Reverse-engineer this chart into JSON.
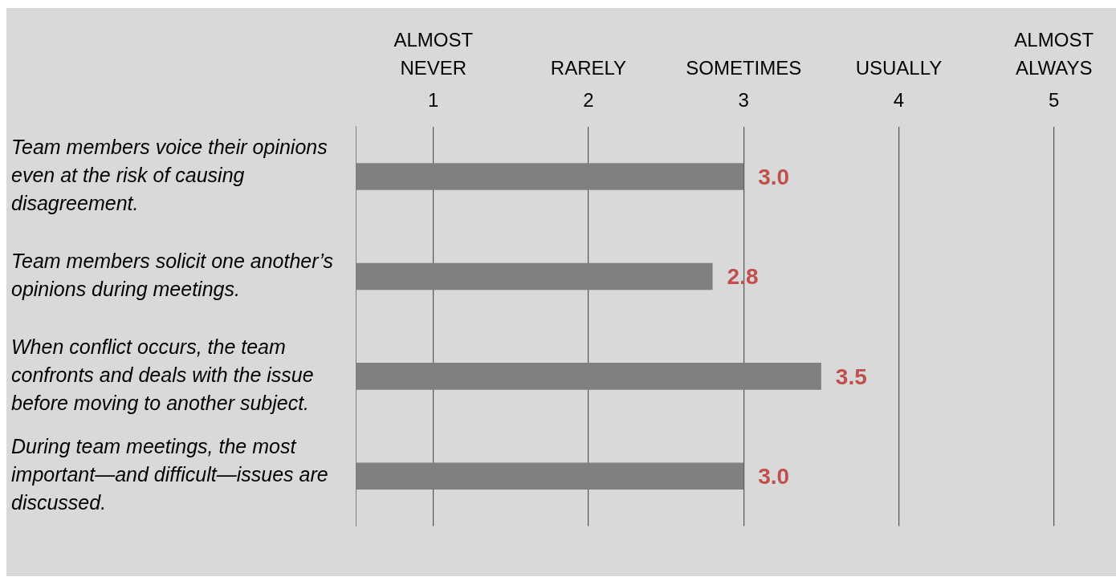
{
  "chart_data": {
    "type": "bar",
    "orientation": "horizontal",
    "categories": [
      "Team members voice their opinions even at the risk of causing disagreement.",
      "Team members solicit one another’s opinions during meetings.",
      "When conflict occurs, the team confronts and deals with the issue before moving to another subject.",
      "During team meetings, the most important—and difficult—issues are discussed."
    ],
    "values": [
      3.0,
      2.8,
      3.5,
      3.0
    ],
    "value_labels": [
      "3.0",
      "2.8",
      "3.5",
      "3.0"
    ],
    "color": "#808080",
    "xlim": [
      0.5,
      5.4
    ],
    "xticks": [
      1,
      2,
      3,
      4,
      5
    ],
    "annotations": [
      "ALMOST NEVER",
      "RARELY",
      "SOMETIMES",
      "USUALLY",
      "ALMOST ALWAYS"
    ],
    "grid": "x",
    "legend": false
  }
}
